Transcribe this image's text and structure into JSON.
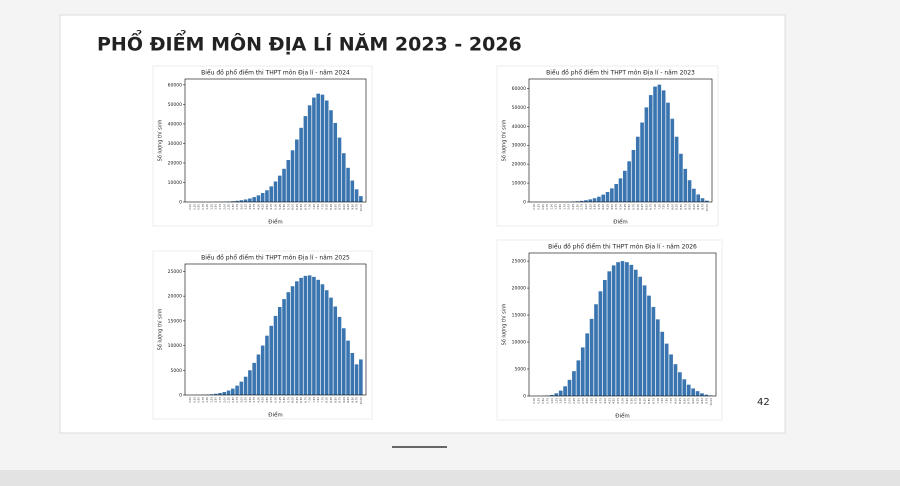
{
  "slide": {
    "title": "PHỔ ĐIỂM MÔN ĐỊA LÍ NĂM 2023 - 2026",
    "page_number": "42"
  },
  "chart_data": [
    {
      "type": "bar",
      "title": "Biểu đồ phổ điểm thi THPT môn Địa lí - năm 2024",
      "x_label": "Điểm",
      "y_label": "Số lượng thí sinh",
      "color": "#3a75b0",
      "categories": [
        "0.00",
        "0.25",
        "0.50",
        "0.75",
        "1.00",
        "1.25",
        "1.50",
        "1.75",
        "2.00",
        "2.25",
        "2.50",
        "2.75",
        "3.00",
        "3.25",
        "3.50",
        "3.75",
        "4.00",
        "4.25",
        "4.50",
        "4.75",
        "5.00",
        "5.25",
        "5.50",
        "5.75",
        "6.00",
        "6.25",
        "6.50",
        "6.75",
        "7.00",
        "7.25",
        "7.50",
        "7.75",
        "8.00",
        "8.25",
        "8.50",
        "8.75",
        "9.00",
        "9.25",
        "9.50",
        "9.75",
        "10.00"
      ],
      "values": [
        0,
        0,
        0,
        0,
        10,
        20,
        40,
        80,
        150,
        250,
        400,
        600,
        900,
        1300,
        1800,
        2500,
        3400,
        4600,
        6000,
        8000,
        10500,
        13500,
        17000,
        21500,
        26500,
        32000,
        38000,
        44000,
        49500,
        53500,
        55500,
        55000,
        52000,
        47000,
        40500,
        33000,
        25000,
        17500,
        11000,
        6500,
        3000
      ],
      "ylim": [
        0,
        63000
      ],
      "yticks": [
        0,
        10000,
        20000,
        30000,
        40000,
        50000,
        60000
      ]
    },
    {
      "type": "bar",
      "title": "Biểu đồ phổ điểm thi THPT môn Địa lí - năm 2023",
      "x_label": "Điểm",
      "y_label": "Số lượng thí sinh",
      "color": "#3a75b0",
      "categories": [
        "0.00",
        "0.25",
        "0.50",
        "0.75",
        "1.00",
        "1.25",
        "1.50",
        "1.75",
        "2.00",
        "2.25",
        "2.50",
        "2.75",
        "3.00",
        "3.25",
        "3.50",
        "3.75",
        "4.00",
        "4.25",
        "4.50",
        "4.75",
        "5.00",
        "5.25",
        "5.50",
        "5.75",
        "6.00",
        "6.25",
        "6.50",
        "6.75",
        "7.00",
        "7.25",
        "7.50",
        "7.75",
        "8.00",
        "8.25",
        "8.50",
        "8.75",
        "9.00",
        "9.25",
        "9.50",
        "9.75",
        "10.00"
      ],
      "values": [
        0,
        0,
        0,
        0,
        5,
        10,
        30,
        60,
        120,
        220,
        380,
        600,
        950,
        1400,
        2000,
        2800,
        3900,
        5300,
        7200,
        9500,
        12500,
        16500,
        21500,
        27500,
        34500,
        42000,
        50000,
        56500,
        61000,
        62000,
        59000,
        52500,
        44000,
        34500,
        25500,
        17500,
        11500,
        7000,
        4000,
        2000,
        700
      ],
      "ylim": [
        0,
        65000
      ],
      "yticks": [
        0,
        10000,
        20000,
        30000,
        40000,
        50000,
        60000
      ]
    },
    {
      "type": "bar",
      "title": "Biểu đồ phổ điểm thi THPT môn Địa lí - năm 2025",
      "x_label": "Điểm",
      "y_label": "Số lượng thí sinh",
      "color": "#3a75b0",
      "categories": [
        "0.00",
        "0.25",
        "0.50",
        "0.75",
        "1.00",
        "1.25",
        "1.50",
        "1.75",
        "2.00",
        "2.25",
        "2.50",
        "2.75",
        "3.00",
        "3.25",
        "3.50",
        "3.75",
        "4.00",
        "4.25",
        "4.50",
        "4.75",
        "5.00",
        "5.25",
        "5.50",
        "5.75",
        "6.00",
        "6.25",
        "6.50",
        "6.75",
        "7.00",
        "7.25",
        "7.50",
        "7.75",
        "8.00",
        "8.25",
        "8.50",
        "8.75",
        "9.00",
        "9.25",
        "9.50",
        "9.75",
        "10.00"
      ],
      "values": [
        0,
        0,
        20,
        40,
        80,
        150,
        250,
        400,
        600,
        900,
        1300,
        1900,
        2700,
        3700,
        5000,
        6500,
        8200,
        10000,
        12000,
        14000,
        16000,
        17800,
        19400,
        20800,
        22000,
        23000,
        23700,
        24100,
        24200,
        23900,
        23300,
        22400,
        21200,
        19700,
        17900,
        15800,
        13500,
        11000,
        8500,
        6200,
        7200
      ],
      "ylim": [
        0,
        26500
      ],
      "yticks": [
        0,
        5000,
        10000,
        15000,
        20000,
        25000
      ]
    },
    {
      "type": "bar",
      "title": "Biểu đồ phổ điểm thi THPT môn Địa lí - năm 2026",
      "x_label": "Điểm",
      "y_label": "Số lượng thí sinh",
      "color": "#3a75b0",
      "categories": [
        "0.00",
        "0.25",
        "0.50",
        "0.75",
        "1.00",
        "1.25",
        "1.50",
        "1.75",
        "2.00",
        "2.25",
        "2.50",
        "2.75",
        "3.00",
        "3.25",
        "3.50",
        "3.75",
        "4.00",
        "4.25",
        "4.50",
        "4.75",
        "5.00",
        "5.25",
        "5.50",
        "5.75",
        "6.00",
        "6.25",
        "6.50",
        "6.75",
        "7.00",
        "7.25",
        "7.50",
        "7.75",
        "8.00",
        "8.25",
        "8.50",
        "8.75",
        "9.00",
        "9.25",
        "9.50",
        "9.75",
        "10.00"
      ],
      "values": [
        0,
        0,
        30,
        80,
        200,
        500,
        1000,
        1800,
        3000,
        4600,
        6600,
        9000,
        11600,
        14300,
        17000,
        19400,
        21500,
        23100,
        24200,
        24800,
        25000,
        24800,
        24300,
        23400,
        22100,
        20500,
        18600,
        16500,
        14200,
        11900,
        9700,
        7700,
        5900,
        4400,
        3100,
        2100,
        1400,
        900,
        500,
        250,
        100
      ],
      "ylim": [
        0,
        26500
      ],
      "yticks": [
        0,
        5000,
        10000,
        15000,
        20000,
        25000
      ]
    }
  ]
}
